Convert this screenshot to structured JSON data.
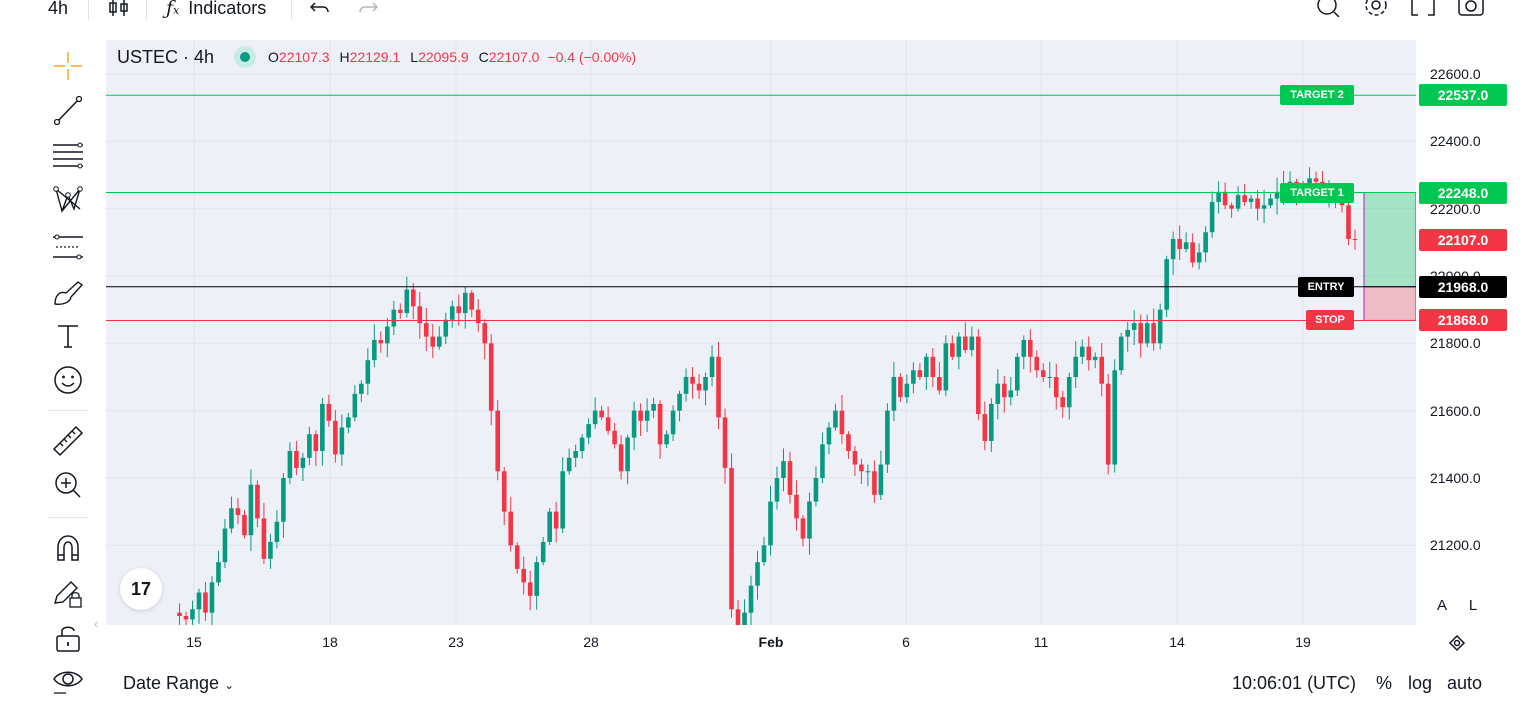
{
  "toolbar": {
    "interval": "4h",
    "indicators_label": "Indicators"
  },
  "legend": {
    "symbol": "USTEC · 4h",
    "open_key": "O",
    "open": "22107.3",
    "high_key": "H",
    "high": "22129.1",
    "low_key": "L",
    "low": "22095.9",
    "close_key": "C",
    "close": "22107.0",
    "change": "−0.4 (−0.00%)"
  },
  "chart_data": {
    "type": "candlestick",
    "symbol": "USTEC",
    "interval": "4h",
    "ylim": [
      21000,
      22650
    ],
    "y_ticks": [
      "22600.0",
      "22400.0",
      "22200.0",
      "22000.0",
      "21800.0",
      "21600.0",
      "21400.0",
      "21200.0"
    ],
    "x_ticks": [
      "15",
      "18",
      "23",
      "28",
      "Feb",
      "6",
      "11",
      "14",
      "19"
    ],
    "grid": true,
    "last_price": "22107.0",
    "levels": [
      {
        "label": "TARGET 2",
        "price": "22537.0",
        "color": "#00c853"
      },
      {
        "label": "TARGET 1",
        "price": "22248.0",
        "color": "#00c853"
      },
      {
        "label": "ENTRY",
        "price": "21968.0",
        "color": "#000000"
      },
      {
        "label": "STOP",
        "price": "21868.0",
        "color": "#f23645"
      }
    ],
    "closes": [
      21000,
      20990,
      20980,
      21010,
      21060,
      21000,
      21090,
      21150,
      21250,
      21310,
      21290,
      21230,
      21380,
      21280,
      21160,
      21210,
      21270,
      21400,
      21480,
      21430,
      21460,
      21530,
      21480,
      21620,
      21570,
      21470,
      21550,
      21580,
      21650,
      21680,
      21750,
      21810,
      21800,
      21850,
      21900,
      21890,
      21960,
      21910,
      21860,
      21820,
      21790,
      21820,
      21870,
      21910,
      21890,
      21950,
      21900,
      21860,
      21800,
      21600,
      21420,
      21300,
      21200,
      21130,
      21090,
      21050,
      21150,
      21210,
      21300,
      21250,
      21420,
      21460,
      21480,
      21520,
      21560,
      21600,
      21580,
      21540,
      21500,
      21420,
      21520,
      21600,
      21570,
      21600,
      21620,
      21500,
      21530,
      21600,
      21650,
      21700,
      21680,
      21660,
      21700,
      21760,
      21580,
      21430,
      21010,
      20900,
      21000,
      21080,
      21150,
      21200,
      21330,
      21400,
      21450,
      21350,
      21280,
      21220,
      21330,
      21400,
      21500,
      21550,
      21600,
      21530,
      21480,
      21440,
      21420,
      21420,
      21350,
      21440,
      21600,
      21700,
      21640,
      21680,
      21720,
      21700,
      21760,
      21700,
      21660,
      21800,
      21760,
      21820,
      21780,
      21820,
      21590,
      21510,
      21620,
      21680,
      21640,
      21660,
      21760,
      21810,
      21760,
      21720,
      21700,
      21700,
      21640,
      21610,
      21700,
      21760,
      21790,
      21750,
      21760,
      21680,
      21440,
      21720,
      21820,
      21840,
      21860,
      21800,
      21860,
      21800,
      21900,
      22050,
      22110,
      22080,
      22100,
      22040,
      22070,
      22130,
      22220,
      22250,
      22210,
      22200,
      22240,
      22220,
      22230,
      22200,
      22210,
      22230,
      22250,
      22270,
      22280,
      22230,
      22250,
      22290,
      22280,
      22240,
      22250,
      22220,
      22210,
      22110,
      22107
    ]
  },
  "time_axis": {
    "date_range": "Date Range",
    "clock": "10:06:01 (UTC)",
    "percent": "%",
    "log": "log",
    "auto": "auto"
  },
  "scale": {
    "a": "A",
    "l": "L"
  },
  "logo": "17"
}
